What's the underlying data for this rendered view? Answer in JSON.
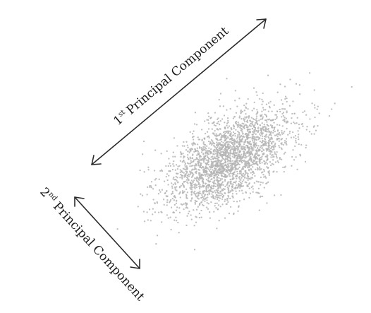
{
  "axes": {
    "first": {
      "ordinal": "1",
      "suffix": "st",
      "label": "Principal Component"
    },
    "second": {
      "ordinal": "2",
      "suffix": "nd",
      "label": "Principal Component"
    }
  },
  "colors": {
    "points": "#b4b4b4",
    "arrows": "#2a2a2a",
    "background": "#ffffff"
  },
  "chart_data": {
    "type": "scatter",
    "point_count": 2600,
    "distribution": "bivariate normal, positively correlated",
    "title": "",
    "xlabel": "",
    "ylabel": "",
    "grid": false
  }
}
